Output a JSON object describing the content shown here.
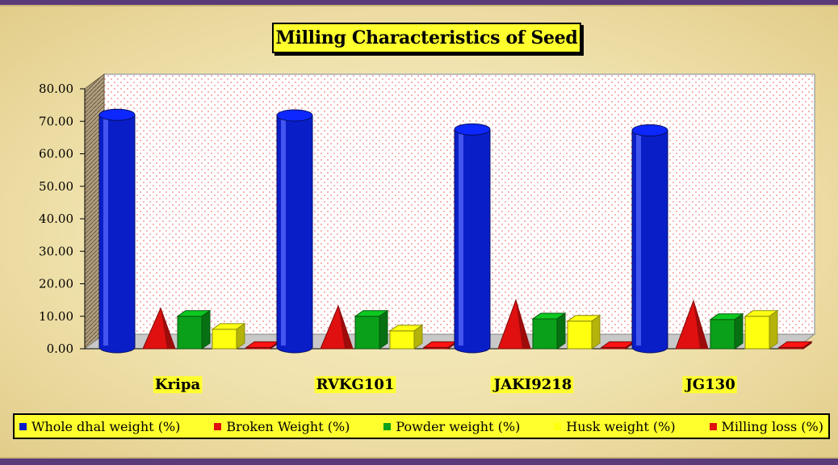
{
  "chart_data": {
    "type": "bar",
    "title": "Milling Characteristics of Seed",
    "categories": [
      "Kripa",
      "RVKG101",
      "JAKI9218",
      "JG130"
    ],
    "series": [
      {
        "name": "Whole dhal weight (%)",
        "color": "#0a1ec8",
        "shape": "cylinder",
        "values": [
          72.0,
          71.8,
          67.5,
          67.2
        ]
      },
      {
        "name": "Broken Weight (%)",
        "color": "#e01010",
        "shape": "cone",
        "values": [
          12.5,
          13.2,
          15.0,
          14.8
        ]
      },
      {
        "name": "Powder weight (%)",
        "color": "#0aa01a",
        "shape": "box",
        "values": [
          10.0,
          10.0,
          9.2,
          9.0
        ]
      },
      {
        "name": "Husk weight (%)",
        "color": "#ffff10",
        "shape": "box",
        "values": [
          6.0,
          5.5,
          8.5,
          10.0
        ]
      },
      {
        "name": "Milling loss (%)",
        "color": "#e01010",
        "shape": "box",
        "values": [
          0.4,
          0.4,
          0.4,
          0.4
        ]
      }
    ],
    "ylim": [
      0,
      80
    ],
    "yticks": [
      "0.00",
      "10.00",
      "20.00",
      "30.00",
      "40.00",
      "50.00",
      "60.00",
      "70.00",
      "80.00"
    ],
    "legend_position": "bottom",
    "grid": false
  }
}
